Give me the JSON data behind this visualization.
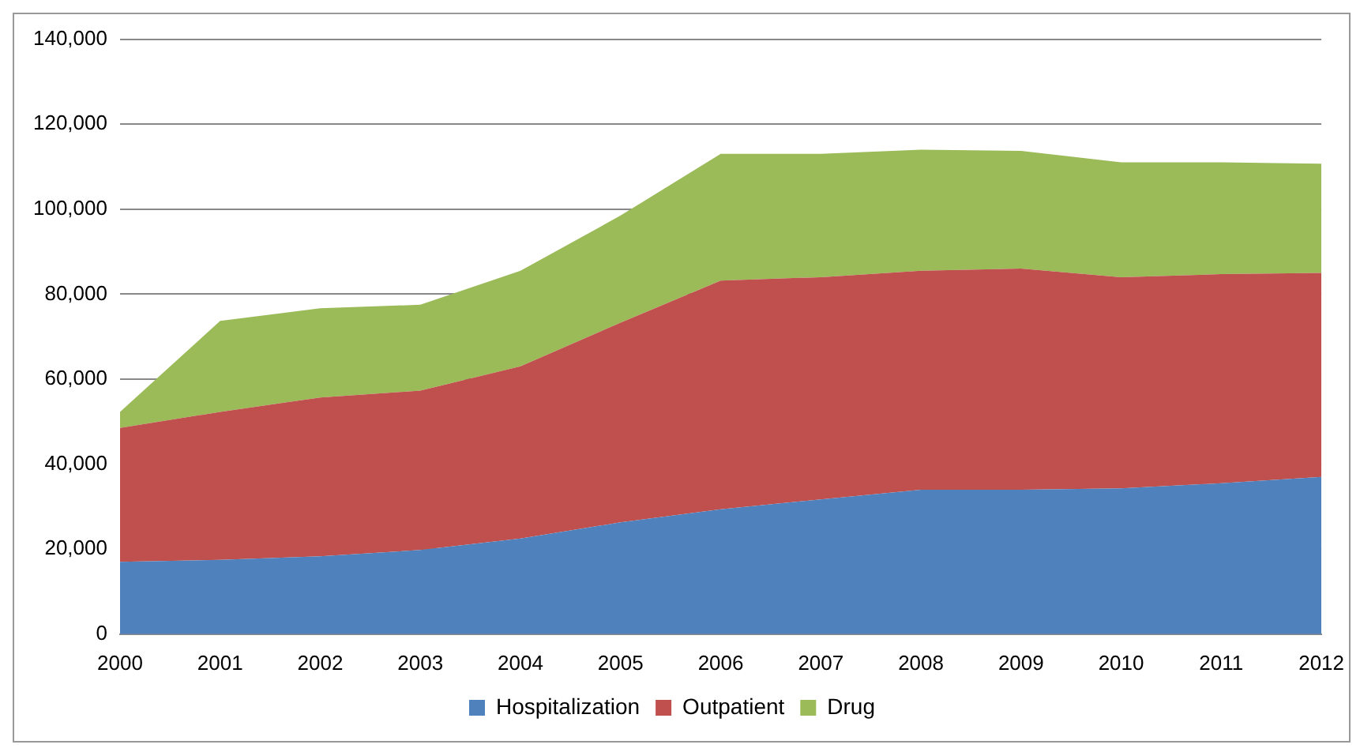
{
  "chart_data": {
    "type": "area",
    "stacked": true,
    "categories": [
      "2000",
      "2001",
      "2002",
      "2003",
      "2004",
      "2005",
      "2006",
      "2007",
      "2008",
      "2009",
      "2010",
      "2011",
      "2012"
    ],
    "series": [
      {
        "name": "Hospitalization",
        "color": "#4f81bd",
        "values": [
          17000,
          17500,
          18300,
          19800,
          22500,
          26300,
          29400,
          31700,
          34000,
          34000,
          34300,
          35500,
          37000
        ]
      },
      {
        "name": "Outpatient",
        "color": "#c0504d",
        "values": [
          31500,
          34800,
          37400,
          37500,
          40500,
          47000,
          53800,
          52300,
          51500,
          52000,
          49700,
          49200,
          48000
        ]
      },
      {
        "name": "Drug",
        "color": "#9bbb59",
        "values": [
          3800,
          21400,
          21000,
          20200,
          22500,
          25200,
          29800,
          29000,
          28500,
          27700,
          27000,
          26300,
          25700
        ]
      }
    ],
    "ylim": [
      0,
      140000
    ],
    "yticks": [
      0,
      {
        "value": 20000,
        "label": "20,000"
      },
      {
        "value": 40000,
        "label": "40,000"
      },
      {
        "value": 60000,
        "label": "60,000"
      },
      {
        "value": 80000,
        "label": "80,000"
      },
      {
        "value": 100000,
        "label": "100,000"
      },
      {
        "value": 120000,
        "label": "120,000"
      },
      {
        "value": 140000,
        "label": "140,000"
      }
    ],
    "grid": "y",
    "legend": "bottom"
  }
}
